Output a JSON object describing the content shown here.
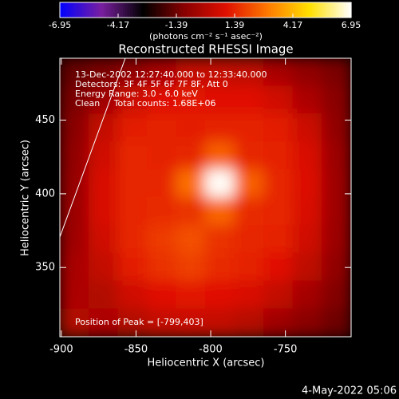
{
  "chart_data": {
    "type": "heatmap",
    "title": "Reconstructed RHESSI Image",
    "colorbar_label": "(photons cm⁻² s⁻¹ asec⁻²)",
    "clim": [
      -6.95,
      6.95
    ],
    "cticks": [
      -6.95,
      -4.17,
      -1.39,
      1.39,
      4.17,
      6.95
    ],
    "colormap": [
      "#0000ff",
      "#7a1fa0",
      "#000000",
      "#8a0000",
      "#e01000",
      "#ff7a00",
      "#ffe000",
      "#ffffff"
    ],
    "x_label": "Heliocentric X (arcsec)",
    "y_label": "Heliocentric Y (arcsec)",
    "xlim": [
      -901,
      -706
    ],
    "ylim": [
      303,
      492
    ],
    "xticks": [
      -900,
      -850,
      -800,
      -750
    ],
    "yticks": [
      350,
      400,
      450
    ],
    "z": [
      [
        -1.5,
        -1.2,
        -0.8,
        -0.3,
        0.3,
        0.3,
        0.2,
        -0.3,
        -0.8,
        -1.2
      ],
      [
        -1.2,
        -0.5,
        0.5,
        1.0,
        1.1,
        1.0,
        1.0,
        0.6,
        -0.2,
        -1.0
      ],
      [
        -1.0,
        0.3,
        1.2,
        1.3,
        1.2,
        1.3,
        1.3,
        1.2,
        0.5,
        -0.8
      ],
      [
        -0.8,
        0.6,
        1.4,
        1.3,
        1.4,
        2.5,
        1.4,
        1.3,
        0.8,
        -0.6
      ],
      [
        -0.7,
        0.8,
        1.4,
        1.4,
        2.8,
        6.9,
        2.5,
        1.4,
        0.9,
        -0.5
      ],
      [
        -0.6,
        0.8,
        1.4,
        1.5,
        1.6,
        2.6,
        1.5,
        1.4,
        0.8,
        -0.5
      ],
      [
        -0.5,
        0.6,
        1.4,
        1.8,
        2.2,
        1.6,
        1.4,
        1.3,
        0.6,
        -0.6
      ],
      [
        -0.3,
        0.3,
        1.2,
        1.6,
        1.9,
        1.5,
        1.3,
        1.0,
        0.2,
        -0.8
      ],
      [
        -0.2,
        -0.1,
        0.6,
        1.0,
        1.1,
        1.0,
        0.8,
        0.3,
        -0.4,
        -1.1
      ],
      [
        -0.1,
        -0.2,
        -0.1,
        0.3,
        0.4,
        0.3,
        0.0,
        -0.5,
        -1.0,
        -1.4
      ]
    ],
    "annotations": [
      "13-Dec-2002 12:27:40.000 to 12:33:40.000",
      "Detectors: 3F 4F 5F 6F 7F 8F, Att 0",
      "Energy Range: 3.0 - 6.0 keV",
      "Clean     Total counts: 1.68E+06"
    ],
    "peak_label": "Position of Peak = [-799,403]",
    "footer": "4-May-2022 05:06"
  }
}
